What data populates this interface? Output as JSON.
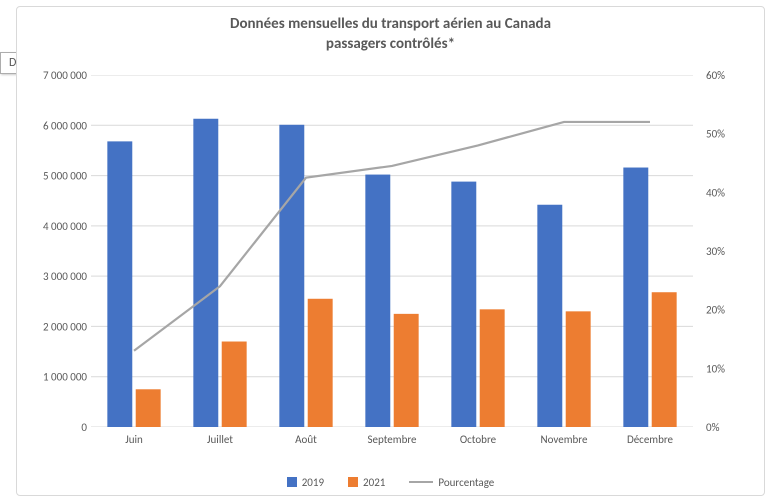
{
  "tooltip_text": "Dites-nous ce que vous voulez faire",
  "chart": {
    "type": "bar+line",
    "title_line1": "Données mensuelles du transport aérien au Canada",
    "title_line2": "passagers contrôlés*",
    "title_fontsize": 15,
    "title_color": "#595959",
    "categories": [
      "Juin",
      "Juillet",
      "Août",
      "Septembre",
      "Octobre",
      "Novembre",
      "Décembre"
    ],
    "series": [
      {
        "name": "2019",
        "type": "bar",
        "color": "#4472c4",
        "values": [
          5680000,
          6130000,
          6010000,
          5020000,
          4880000,
          4420000,
          5160000
        ]
      },
      {
        "name": "2021",
        "type": "bar",
        "color": "#ed7d31",
        "values": [
          750000,
          1700000,
          2550000,
          2250000,
          2340000,
          2300000,
          2680000
        ]
      },
      {
        "name": "Pourcentage",
        "type": "line",
        "color": "#a6a6a6",
        "values": [
          13,
          24,
          42.5,
          44.5,
          48,
          52,
          52
        ]
      }
    ],
    "y_left": {
      "min": 0,
      "max": 7000000,
      "step": 1000000,
      "labels": [
        "0",
        "1 000 000",
        "2 000 000",
        "3 000 000",
        "4 000 000",
        "5 000 000",
        "6 000 000",
        "7 000 000"
      ]
    },
    "y_right": {
      "min": 0,
      "max": 60,
      "step": 10,
      "labels": [
        "0%",
        "10%",
        "20%",
        "30%",
        "40%",
        "50%",
        "60%"
      ]
    },
    "bar_group_width": 0.62,
    "bar_gap": 0.04,
    "background_color": "#ffffff",
    "grid_color": "#d9d9d9",
    "axis_font_size": 11,
    "axis_color": "#595959",
    "line_width": 2.2,
    "legend": [
      "2019",
      "2021",
      "Pourcentage"
    ]
  }
}
